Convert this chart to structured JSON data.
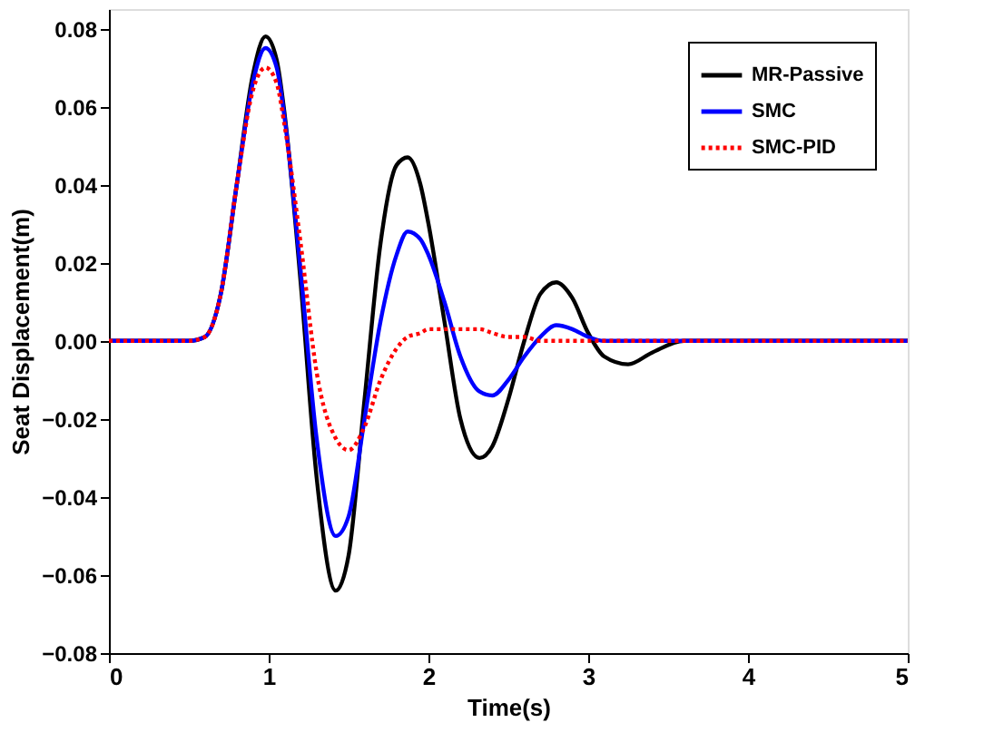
{
  "chart_data": {
    "type": "line",
    "xlabel": "Time(s)",
    "ylabel": "Seat Displacement(m)",
    "x": [
      0,
      0.5,
      0.6,
      0.7,
      0.8,
      0.9,
      0.98,
      1.05,
      1.1,
      1.2,
      1.3,
      1.42,
      1.5,
      1.6,
      1.7,
      1.8,
      1.87,
      1.95,
      2.0,
      2.1,
      2.2,
      2.32,
      2.4,
      2.5,
      2.6,
      2.7,
      2.8,
      2.9,
      3.0,
      3.1,
      3.25,
      3.4,
      3.6,
      4,
      5
    ],
    "series": [
      {
        "name": "MR-Passive",
        "color": "#000000",
        "line_style": "solid",
        "values": [
          0,
          0,
          0.001,
          0.012,
          0.04,
          0.068,
          0.078,
          0.072,
          0.058,
          0.015,
          -0.035,
          -0.064,
          -0.055,
          -0.015,
          0.025,
          0.045,
          0.047,
          0.04,
          0.03,
          0.005,
          -0.02,
          -0.03,
          -0.027,
          -0.015,
          0.0,
          0.012,
          0.015,
          0.011,
          0.002,
          -0.004,
          -0.006,
          -0.003,
          0,
          0,
          0
        ]
      },
      {
        "name": "SMC",
        "color": "#0000ff",
        "line_style": "solid",
        "values": [
          0,
          0,
          0.001,
          0.012,
          0.04,
          0.066,
          0.075,
          0.07,
          0.057,
          0.018,
          -0.025,
          -0.05,
          -0.045,
          -0.02,
          0.005,
          0.022,
          0.028,
          0.026,
          0.022,
          0.01,
          -0.004,
          -0.013,
          -0.014,
          -0.01,
          -0.004,
          0.001,
          0.004,
          0.003,
          0.001,
          0,
          0,
          0,
          0,
          0,
          0
        ]
      },
      {
        "name": "SMC-PID",
        "color": "#ff0000",
        "line_style": "dotted",
        "values": [
          0,
          0,
          0.001,
          0.012,
          0.04,
          0.064,
          0.07,
          0.066,
          0.055,
          0.025,
          -0.008,
          -0.025,
          -0.028,
          -0.022,
          -0.01,
          -0.002,
          0.001,
          0.002,
          0.003,
          0.003,
          0.003,
          0.003,
          0.002,
          0.001,
          0.001,
          0,
          0,
          0,
          0,
          0,
          0,
          0,
          0,
          0,
          0
        ]
      }
    ],
    "xlim": [
      0,
      5
    ],
    "xticks": [
      0,
      1,
      2,
      3,
      4,
      5
    ],
    "ylim": [
      -0.08,
      0.085
    ],
    "yticks": [
      -0.08,
      -0.06,
      -0.04,
      -0.02,
      {
        "value": 0,
        "label": "0.00"
      },
      0.02,
      0.04,
      0.06,
      0.08
    ],
    "grid": false,
    "legend": "top right",
    "marker": "none"
  }
}
